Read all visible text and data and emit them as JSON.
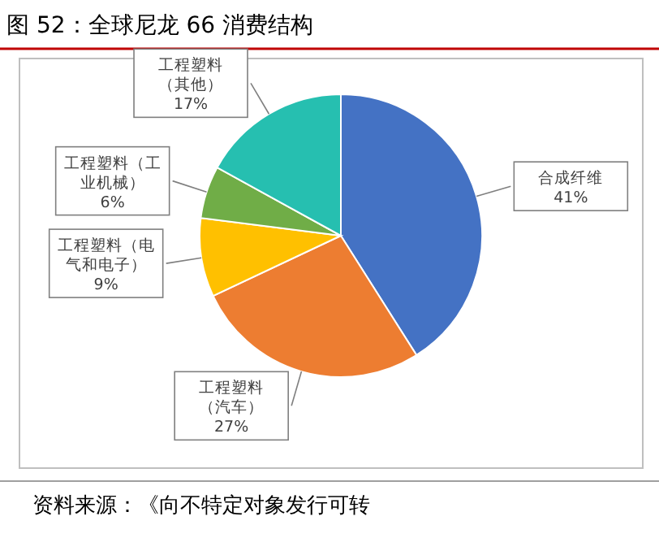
{
  "chart_data": {
    "type": "pie",
    "title": "图 52：全球尼龙 66 消费结构",
    "categories": [
      "合成纤维",
      "工程塑料（汽车）",
      "工程塑料（电气和电子）",
      "工程塑料（工业机械）",
      "工程塑料（其他）"
    ],
    "values": [
      41,
      27,
      9,
      6,
      17
    ],
    "colors": [
      "#4472c4",
      "#ed7d31",
      "#ffc000",
      "#70ad47",
      "#26bfb0"
    ],
    "value_labels": [
      "41%",
      "27%",
      "9%",
      "6%",
      "17%"
    ],
    "annotations": [
      "资料来源：《向不特定对象发行可转"
    ]
  }
}
